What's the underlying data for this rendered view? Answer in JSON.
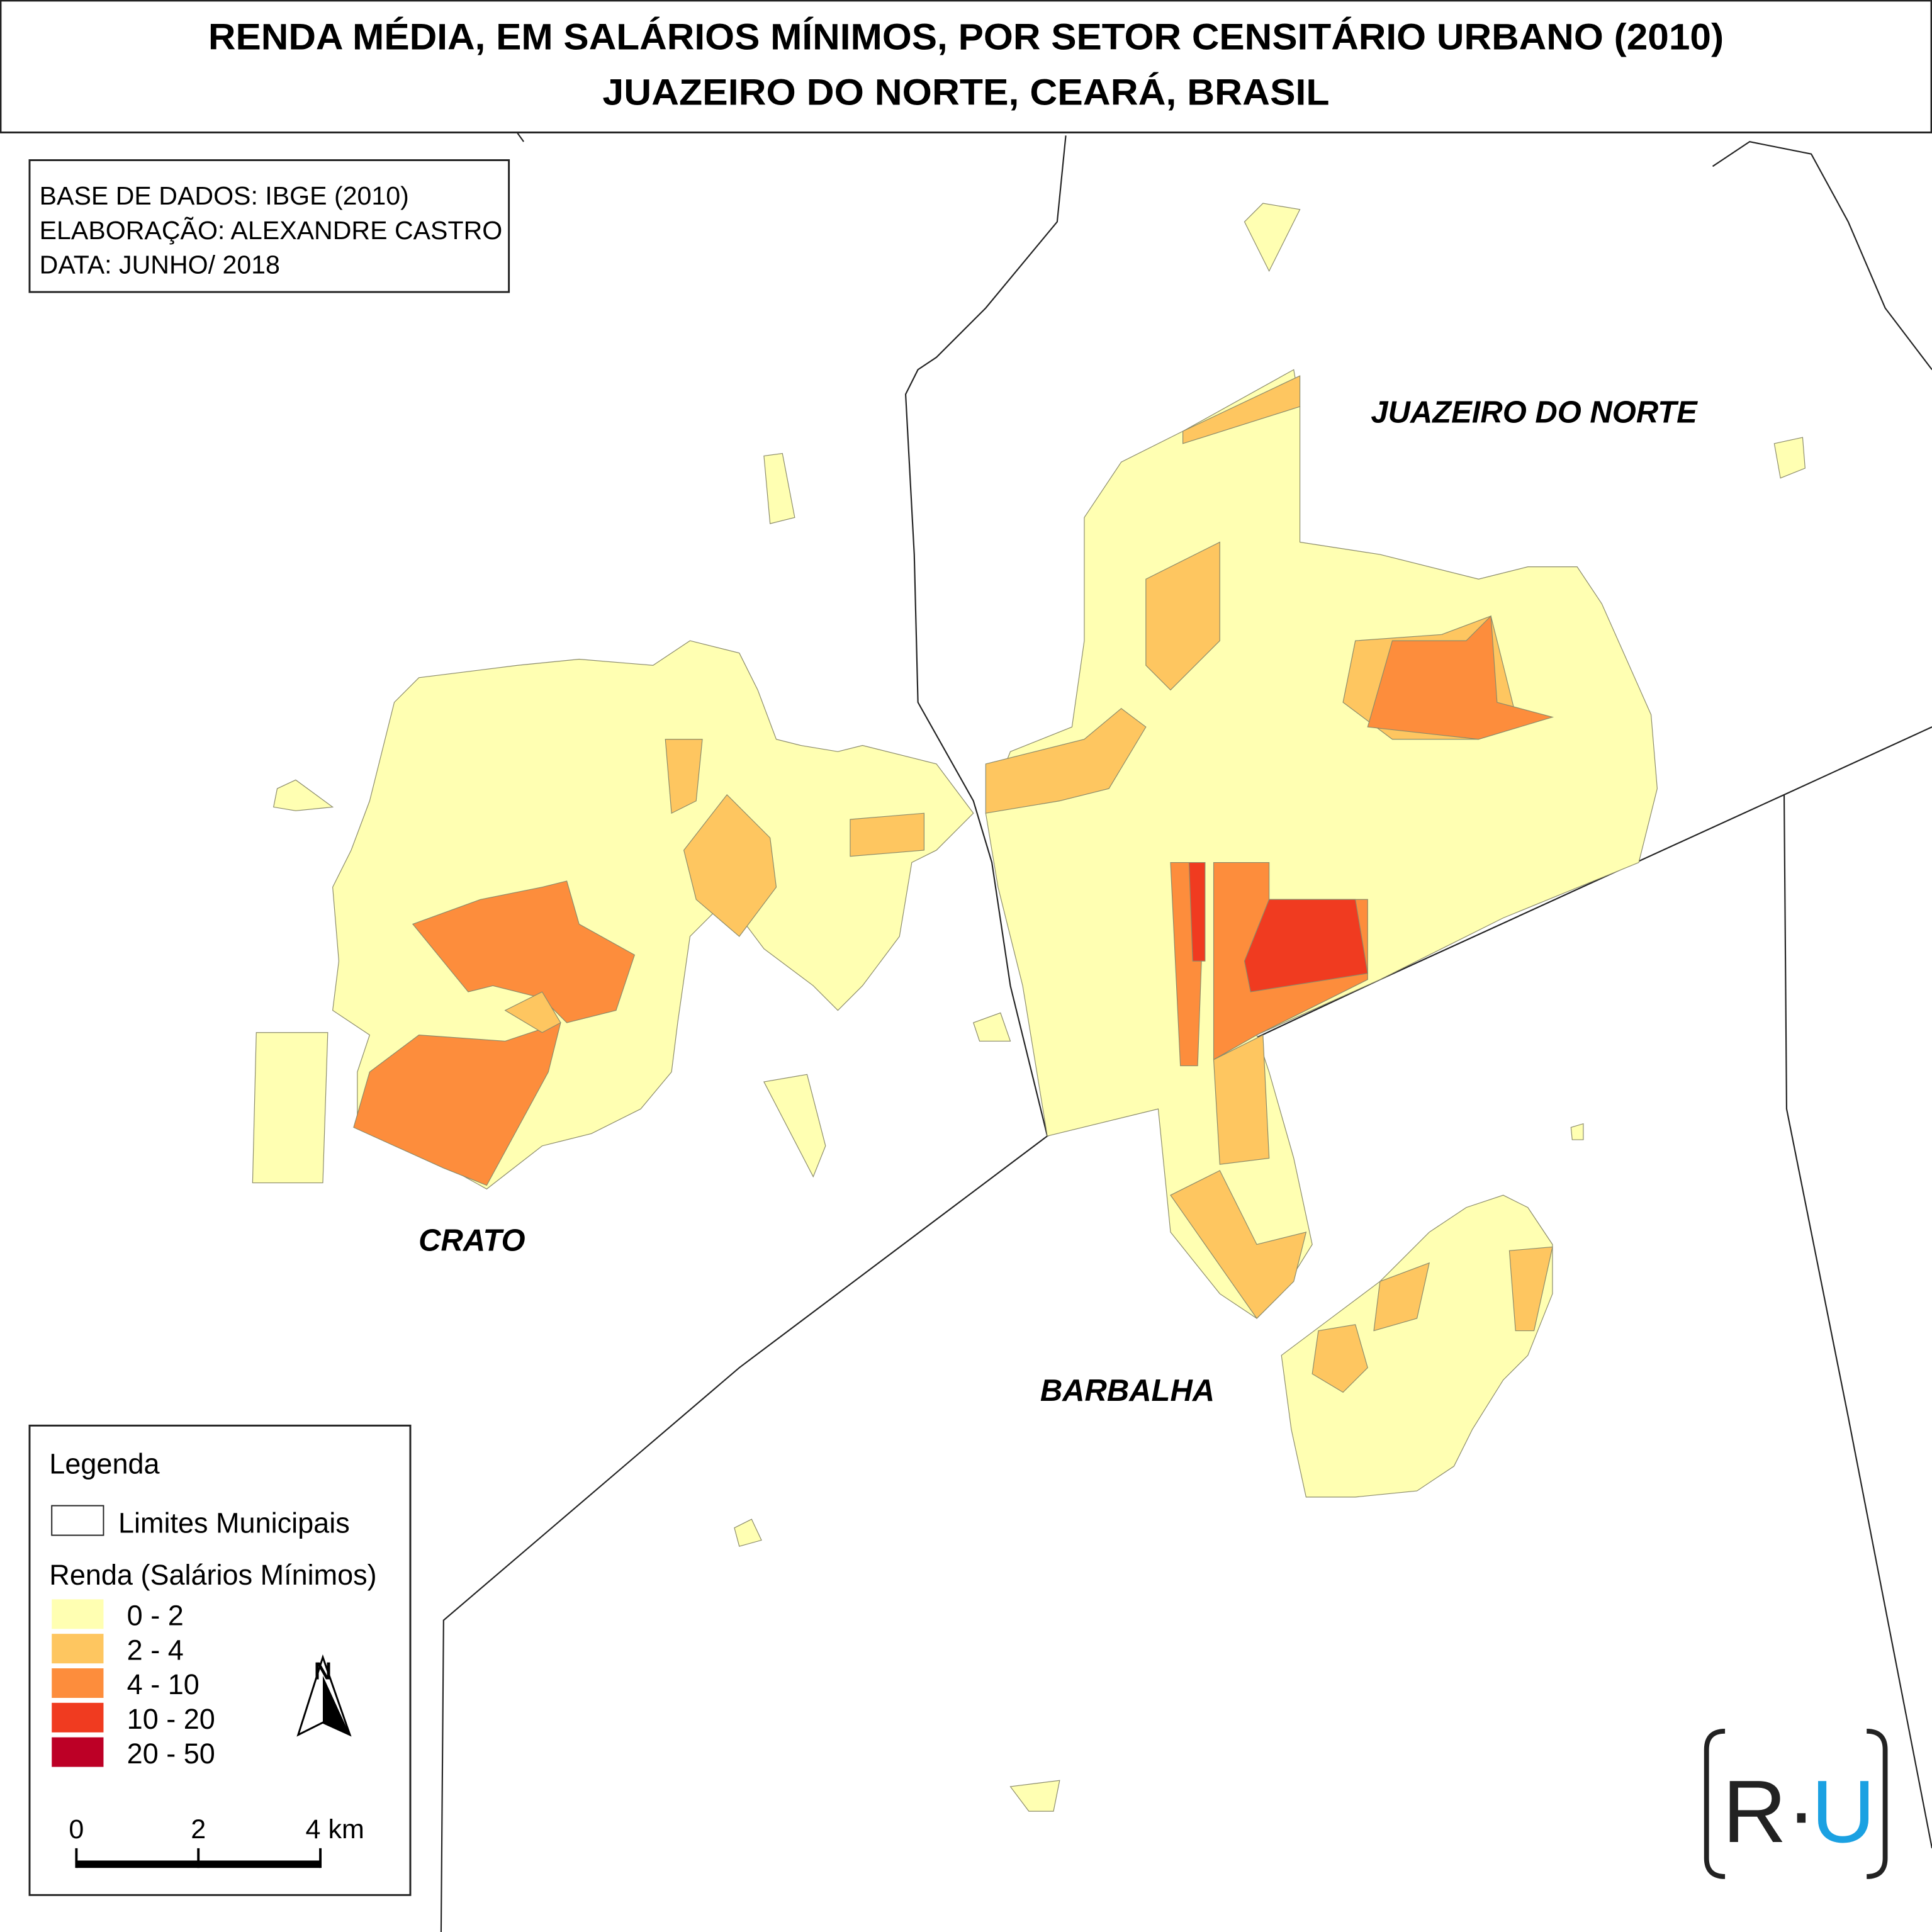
{
  "title": [
    "RENDA MÉDIA, EM SALÁRIOS MÍNIMOS, POR SETOR CENSITÁRIO URBANO (2010)",
    "JUAZEIRO DO NORTE, CEARÁ, BRASIL"
  ],
  "credits": [
    "BASE DE DADOS: IBGE (2010)",
    "ELABORAÇÃO: ALEXANDRE CASTRO",
    "DATA: JUNHO/ 2018"
  ],
  "places": [
    "JUAZEIRO DO NORTE",
    "CRATO",
    "BARBALHA"
  ],
  "legend": {
    "title": "Legenda",
    "boundary": "Limites Municipais",
    "income_title": "Renda (Salários Mínimos)",
    "classes": [
      {
        "label": "0 - 2",
        "color": "#ffffb2"
      },
      {
        "label": "2 - 4",
        "color": "#fec660"
      },
      {
        "label": "4 - 10",
        "color": "#fd8d3c"
      },
      {
        "label": "10 - 20",
        "color": "#f03b20"
      },
      {
        "label": "20 - 50",
        "color": "#bd0026"
      }
    ]
  },
  "north": "N",
  "scale_bar": {
    "ticks": [
      0,
      2,
      {
        "value": 4,
        "label": "4 km"
      }
    ]
  },
  "logo": {
    "left": "R·",
    "right": "U"
  }
}
